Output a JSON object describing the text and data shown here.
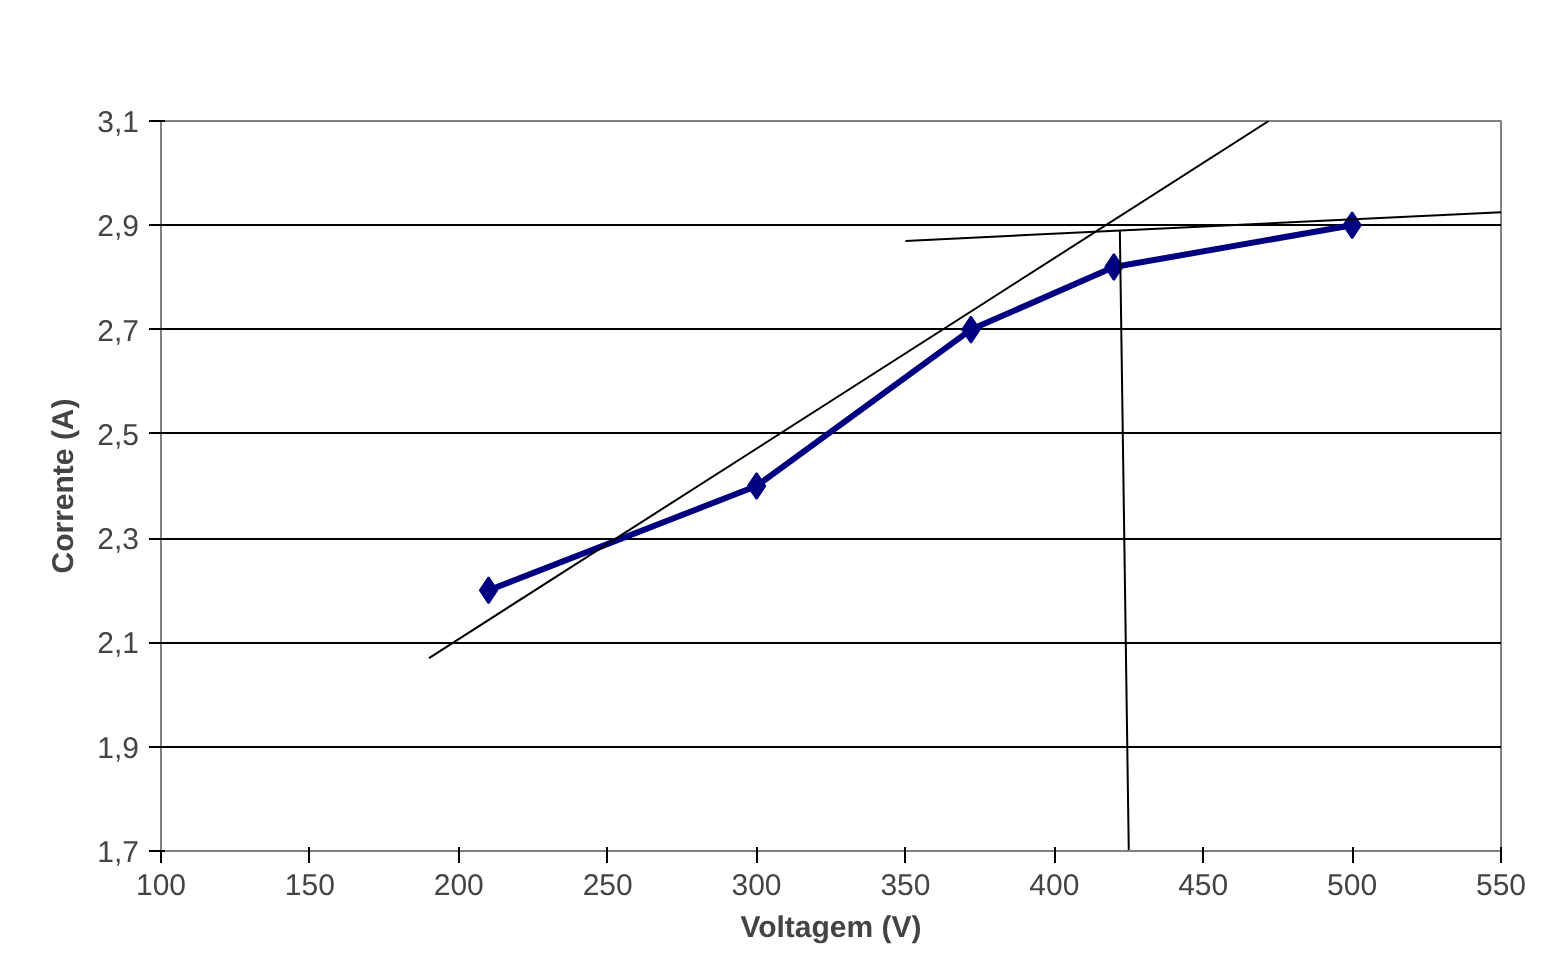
{
  "chart_data": {
    "type": "line",
    "xlabel": "Voltagem (V)",
    "ylabel": "Corrente (A)",
    "x": [
      210,
      300,
      372,
      420,
      500
    ],
    "series": [
      {
        "color": "#000080",
        "values": [
          2.2,
          2.4,
          2.7,
          2.82,
          2.9
        ],
        "marker": "diamond"
      },
      {
        "color": "#000000",
        "x": [
          190,
          472
        ],
        "values": [
          2.07,
          3.1
        ],
        "marker": "none"
      },
      {
        "color": "#000000",
        "x": [
          350,
          550
        ],
        "values": [
          2.87,
          2.925
        ],
        "marker": "none"
      },
      {
        "color": "#000000",
        "x": [
          422,
          425
        ],
        "values": [
          2.89,
          1.7
        ],
        "marker": "none"
      }
    ],
    "xlim": [
      100,
      550
    ],
    "xticks": [
      100,
      150,
      200,
      250,
      300,
      350,
      400,
      450,
      500,
      550
    ],
    "ylim": [
      1.7,
      3.1
    ],
    "yticks": [
      {
        "value": 1.7,
        "label": "1,7"
      },
      {
        "value": 1.9,
        "label": "1,9"
      },
      {
        "value": 2.1,
        "label": "2,1"
      },
      {
        "value": 2.3,
        "label": "2,3"
      },
      {
        "value": 2.5,
        "label": "2,5"
      },
      {
        "value": 2.7,
        "label": "2,7"
      },
      {
        "value": 2.9,
        "label": "2,9"
      },
      {
        "value": 3.1,
        "label": "3,1"
      }
    ],
    "grid": "y"
  }
}
